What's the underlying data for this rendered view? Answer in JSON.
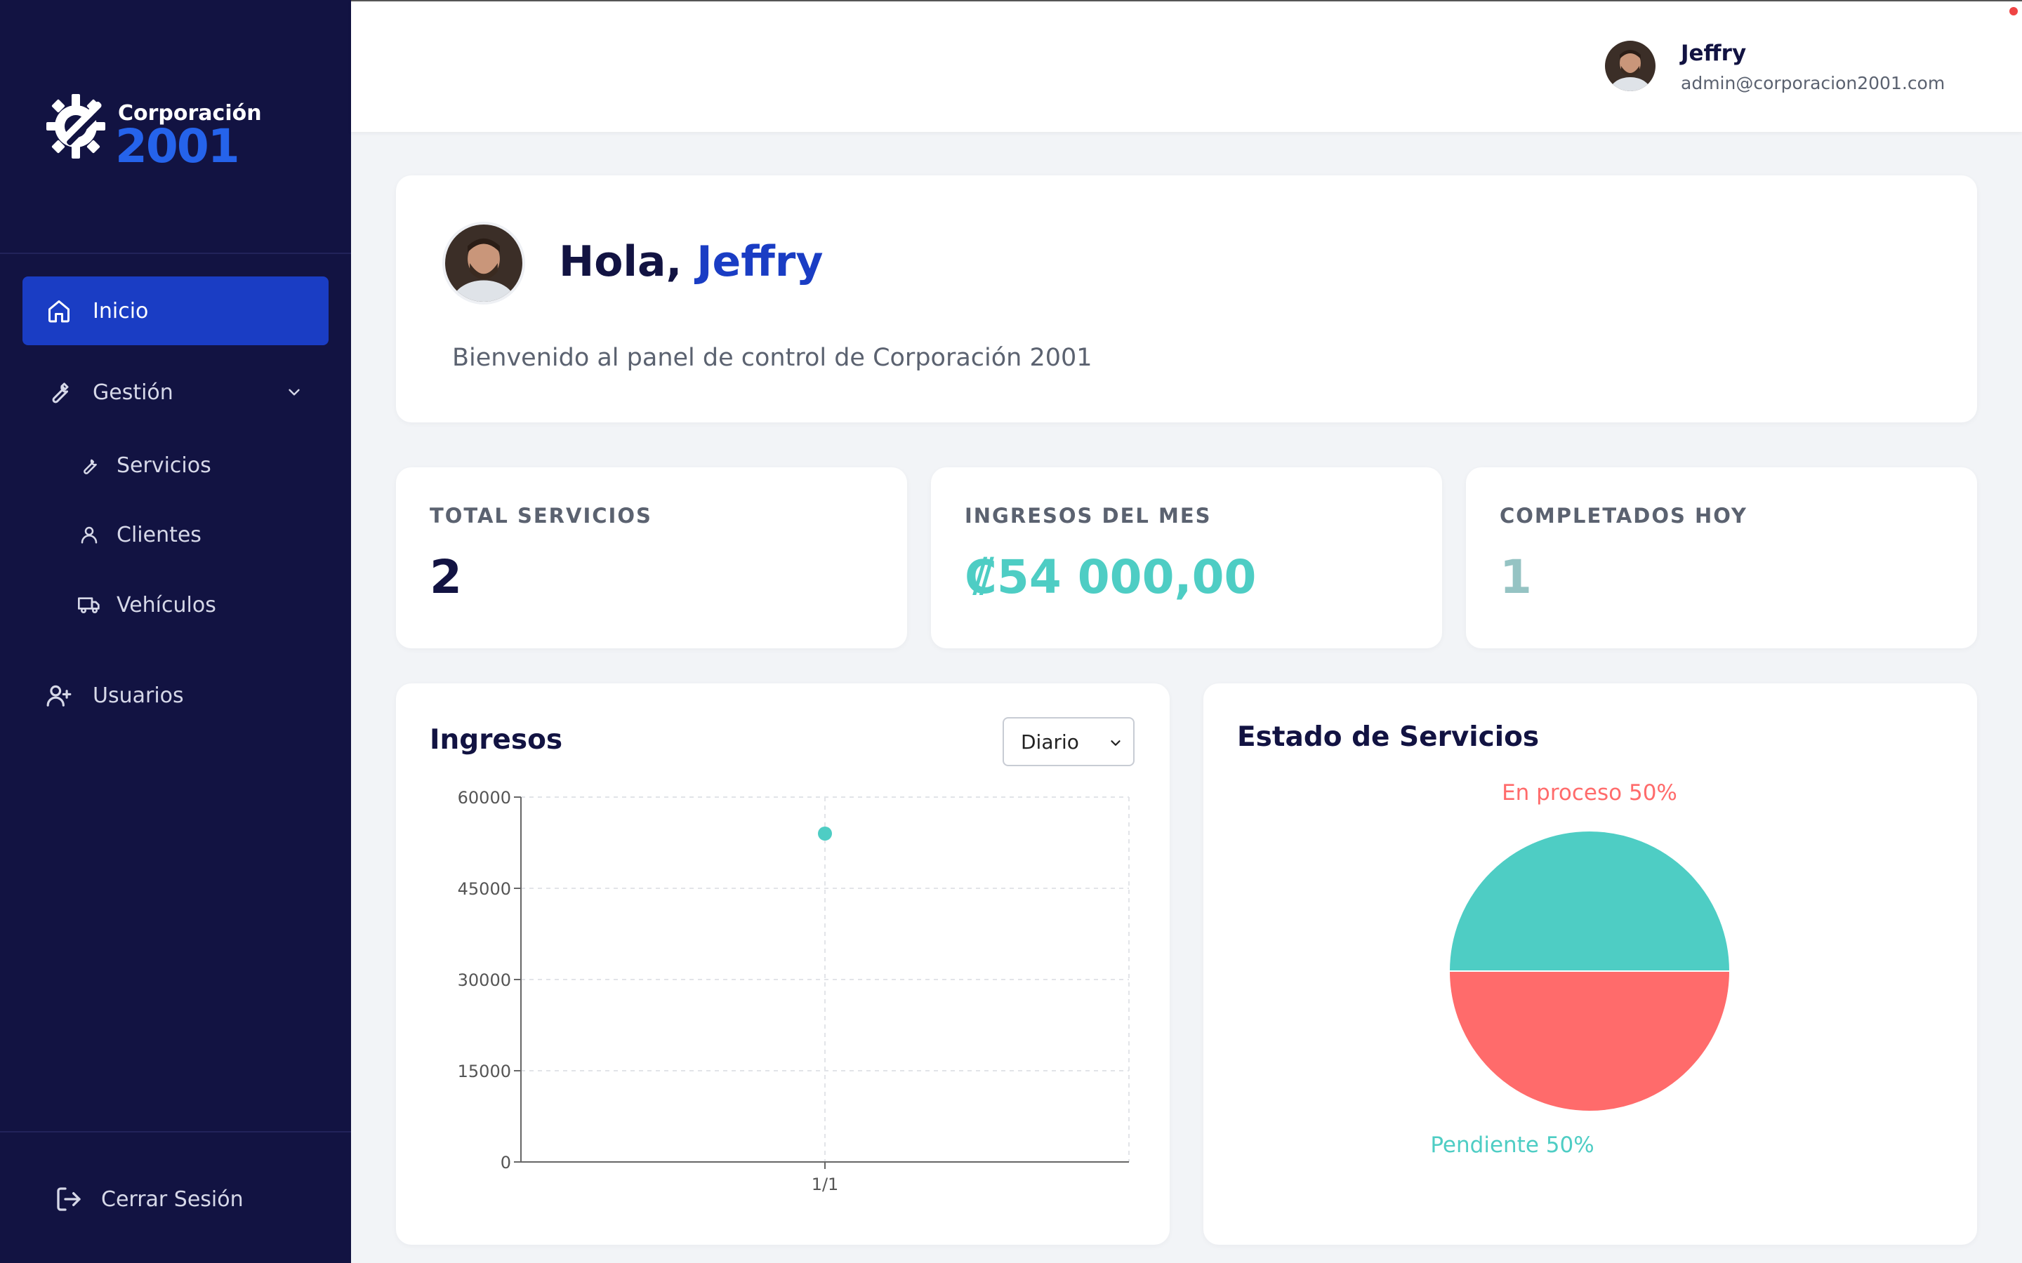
{
  "brand": {
    "line1": "Corporación",
    "line2": "2001"
  },
  "sidebar": {
    "items": [
      {
        "label": "Inicio",
        "icon": "home-icon",
        "active": true
      },
      {
        "label": "Gestión",
        "icon": "wrench-icon",
        "expanded": true
      },
      {
        "label": "Usuarios",
        "icon": "user-plus-icon"
      }
    ],
    "subitems": [
      {
        "label": "Servicios",
        "icon": "wrench-icon"
      },
      {
        "label": "Clientes",
        "icon": "user-icon"
      },
      {
        "label": "Vehículos",
        "icon": "truck-icon"
      }
    ],
    "logout_label": "Cerrar Sesión"
  },
  "header": {
    "user_name": "Jeffry",
    "user_email": "admin@corporacion2001.com"
  },
  "welcome": {
    "greeting": "Hola,",
    "name": "Jeffry",
    "subtitle": "Bienvenido al panel de control de Corporación 2001"
  },
  "stats": [
    {
      "label": "TOTAL SERVICIOS",
      "value": "2",
      "color": "#121342"
    },
    {
      "label": "INGRESOS DEL MES",
      "value": "₡54 000,00",
      "color": "#4ecdc4"
    },
    {
      "label": "COMPLETADOS HOY",
      "value": "1",
      "color": "#95c3c3"
    }
  ],
  "revenue_chart": {
    "title": "Ingresos",
    "period_select": {
      "value": "Diario",
      "options": [
        "Diario"
      ]
    }
  },
  "status_chart": {
    "title": "Estado de Servicios"
  },
  "colors": {
    "sidebar": "#121342",
    "accent": "#1a3dc4",
    "teal": "#4ecdc4",
    "coral": "#ff6b6b"
  },
  "chart_data": [
    {
      "type": "scatter",
      "x": [
        "1/1"
      ],
      "series": [
        {
          "values": [
            54000
          ]
        }
      ],
      "yticks": [
        0,
        15000,
        30000,
        45000,
        60000
      ],
      "ylim": [
        0,
        60000
      ],
      "grid": true,
      "color": "#4ecdc4"
    },
    {
      "type": "pie",
      "title": "Estado de Servicios",
      "slices": [
        {
          "label": "En proceso 50%",
          "value": 50,
          "color": "#ff6b6b"
        },
        {
          "label": "Pendiente 50%",
          "value": 50,
          "color": "#4ecdc4"
        }
      ]
    }
  ]
}
